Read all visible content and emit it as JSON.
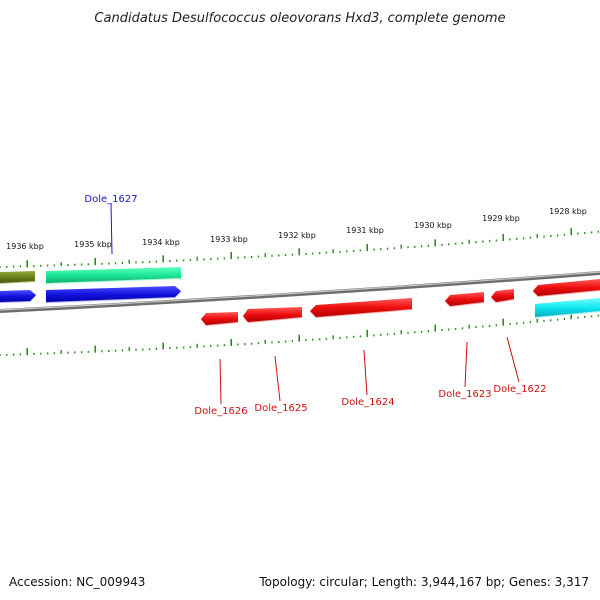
{
  "title": "Candidatus Desulfococcus oleovorans Hxd3, complete genome",
  "footer": {
    "accession": "Accession: NC_009943",
    "topology": "Topology: circular; Length: 3,944,167 bp; Genes: 3,317"
  },
  "colors": {
    "backbone": "#8a8a8a",
    "tick": "#2e8b22",
    "forward_label": "#1a1acc",
    "reverse_label": "#cc1111"
  },
  "scale": {
    "unit": "kbp",
    "ticks": [
      {
        "label": "1936 kbp"
      },
      {
        "label": "1935 kbp"
      },
      {
        "label": "1934 kbp"
      },
      {
        "label": "1933 kbp"
      },
      {
        "label": "1932 kbp"
      },
      {
        "label": "1931 kbp"
      },
      {
        "label": "1930 kbp"
      },
      {
        "label": "1929 kbp"
      },
      {
        "label": "1928 kbp"
      }
    ]
  },
  "genes": {
    "forward": [
      {
        "name": "Dole_1627",
        "strand": "+",
        "color": "#1f1fdd"
      }
    ],
    "reverse": [
      {
        "name": "Dole_1626",
        "strand": "-",
        "color": "#ee1111"
      },
      {
        "name": "Dole_1625",
        "strand": "-",
        "color": "#ee1111"
      },
      {
        "name": "Dole_1624",
        "strand": "-",
        "color": "#ee1111"
      },
      {
        "name": "Dole_1623",
        "strand": "-",
        "color": "#ee1111"
      },
      {
        "name": "Dole_1622",
        "strand": "-",
        "color": "#ee1111"
      }
    ]
  }
}
